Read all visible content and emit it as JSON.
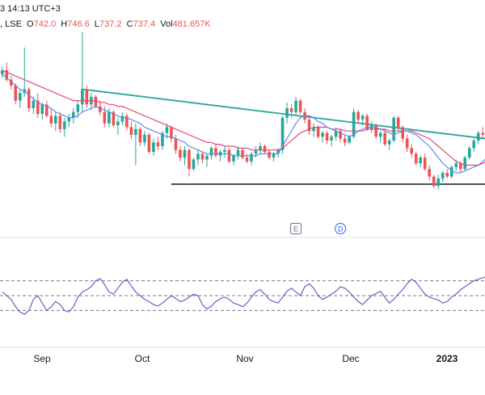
{
  "header": {
    "datetime": "3 14:13 UTC+3",
    "exchange": ", LSE",
    "ohlc": [
      {
        "label": "O",
        "value": "742.0"
      },
      {
        "label": "H",
        "value": "746.6"
      },
      {
        "label": "L",
        "value": "737.2"
      },
      {
        "label": "C",
        "value": "737.4"
      },
      {
        "label": "Vol",
        "value": "481.657K"
      }
    ]
  },
  "colors": {
    "up": "#26a69a",
    "down": "#ef5350",
    "ma_fast": "#5b8def",
    "ma_slow": "#e9457a",
    "trendline": "#26a69a",
    "support": "#131722",
    "osc": "#7e57c2",
    "event_e": "#6b7280",
    "event_d": "#2962ff"
  },
  "chart_data": [
    {
      "type": "candlestick",
      "title": "",
      "x_ticks": [
        "Sep",
        "Oct",
        "Nov",
        "Dec",
        "2023"
      ],
      "ylim": [
        0,
        100
      ],
      "candles": [
        [
          78,
          82,
          76,
          80
        ],
        [
          80,
          84,
          74,
          75
        ],
        [
          75,
          77,
          70,
          72
        ],
        [
          72,
          73,
          62,
          64
        ],
        [
          64,
          70,
          60,
          68
        ],
        [
          68,
          92,
          66,
          70
        ],
        [
          70,
          71,
          58,
          60
        ],
        [
          60,
          66,
          57,
          64
        ],
        [
          64,
          68,
          55,
          57
        ],
        [
          57,
          63,
          54,
          62
        ],
        [
          62,
          64,
          55,
          56
        ],
        [
          56,
          60,
          50,
          52
        ],
        [
          52,
          58,
          48,
          56
        ],
        [
          56,
          58,
          47,
          49
        ],
        [
          49,
          55,
          45,
          53
        ],
        [
          53,
          57,
          50,
          55
        ],
        [
          55,
          60,
          52,
          58
        ],
        [
          58,
          64,
          55,
          62
        ],
        [
          62,
          100,
          58,
          70
        ],
        [
          70,
          72,
          60,
          62
        ],
        [
          62,
          68,
          59,
          66
        ],
        [
          66,
          67,
          60,
          61
        ],
        [
          61,
          64,
          56,
          58
        ],
        [
          58,
          61,
          50,
          52
        ],
        [
          52,
          60,
          50,
          58
        ],
        [
          58,
          59,
          50,
          51
        ],
        [
          51,
          55,
          46,
          53
        ],
        [
          53,
          58,
          51,
          56
        ],
        [
          56,
          57,
          48,
          50
        ],
        [
          50,
          53,
          44,
          46
        ],
        [
          46,
          52,
          30,
          49
        ],
        [
          49,
          50,
          40,
          42
        ],
        [
          42,
          48,
          40,
          46
        ],
        [
          46,
          47,
          36,
          37
        ],
        [
          37,
          44,
          35,
          42
        ],
        [
          42,
          45,
          38,
          40
        ],
        [
          40,
          48,
          38,
          47
        ],
        [
          47,
          52,
          44,
          50
        ],
        [
          50,
          51,
          42,
          44
        ],
        [
          44,
          46,
          36,
          38
        ],
        [
          38,
          40,
          32,
          34
        ],
        [
          34,
          40,
          30,
          38
        ],
        [
          38,
          39,
          24,
          28
        ],
        [
          28,
          34,
          27,
          33
        ],
        [
          33,
          38,
          30,
          36
        ],
        [
          36,
          37,
          31,
          33
        ],
        [
          33,
          36,
          29,
          35
        ],
        [
          35,
          40,
          33,
          39
        ],
        [
          39,
          41,
          34,
          35
        ],
        [
          35,
          38,
          32,
          37
        ],
        [
          37,
          40,
          34,
          38
        ],
        [
          38,
          39,
          31,
          32
        ],
        [
          32,
          36,
          30,
          35
        ],
        [
          35,
          40,
          33,
          38
        ],
        [
          38,
          39,
          33,
          34
        ],
        [
          34,
          36,
          31,
          32
        ],
        [
          32,
          37,
          30,
          36
        ],
        [
          36,
          40,
          34,
          38
        ],
        [
          38,
          42,
          36,
          40
        ],
        [
          40,
          41,
          36,
          37
        ],
        [
          37,
          38,
          33,
          34
        ],
        [
          34,
          37,
          32,
          36
        ],
        [
          36,
          39,
          34,
          38
        ],
        [
          38,
          56,
          36,
          55
        ],
        [
          55,
          63,
          52,
          60
        ],
        [
          60,
          62,
          55,
          58
        ],
        [
          58,
          66,
          56,
          64
        ],
        [
          64,
          65,
          57,
          58
        ],
        [
          58,
          60,
          52,
          54
        ],
        [
          54,
          56,
          46,
          48
        ],
        [
          48,
          52,
          45,
          50
        ],
        [
          50,
          51,
          44,
          45
        ],
        [
          45,
          48,
          42,
          47
        ],
        [
          47,
          48,
          41,
          43
        ],
        [
          43,
          46,
          40,
          45
        ],
        [
          45,
          50,
          43,
          48
        ],
        [
          48,
          49,
          42,
          44
        ],
        [
          44,
          46,
          40,
          42
        ],
        [
          42,
          46,
          41,
          45
        ],
        [
          45,
          60,
          44,
          58
        ],
        [
          58,
          59,
          52,
          54
        ],
        [
          54,
          57,
          51,
          56
        ],
        [
          56,
          57,
          48,
          49
        ],
        [
          49,
          53,
          47,
          51
        ],
        [
          51,
          52,
          44,
          45
        ],
        [
          45,
          48,
          42,
          47
        ],
        [
          47,
          49,
          40,
          41
        ],
        [
          41,
          44,
          38,
          43
        ],
        [
          43,
          56,
          42,
          55
        ],
        [
          55,
          56,
          48,
          50
        ],
        [
          50,
          51,
          42,
          44
        ],
        [
          44,
          46,
          37,
          39
        ],
        [
          39,
          41,
          34,
          36
        ],
        [
          36,
          37,
          30,
          31
        ],
        [
          31,
          35,
          29,
          34
        ],
        [
          34,
          36,
          27,
          28
        ],
        [
          28,
          30,
          22,
          24
        ],
        [
          24,
          25,
          18,
          19
        ],
        [
          19,
          25,
          17,
          23
        ],
        [
          23,
          27,
          21,
          26
        ],
        [
          26,
          28,
          23,
          24
        ],
        [
          24,
          30,
          23,
          29
        ],
        [
          29,
          33,
          27,
          31
        ],
        [
          31,
          32,
          26,
          28
        ],
        [
          28,
          35,
          27,
          34
        ],
        [
          34,
          40,
          33,
          39
        ],
        [
          39,
          44,
          37,
          43
        ],
        [
          43,
          48,
          41,
          47
        ],
        [
          47,
          50,
          44,
          46
        ]
      ],
      "ma_fast": [
        78,
        76,
        74,
        72,
        70,
        69,
        67,
        65,
        63,
        62,
        61,
        60,
        58,
        57,
        56,
        55,
        55,
        56,
        58,
        59,
        60,
        61,
        60,
        59,
        58,
        57,
        56,
        55,
        55,
        54,
        53,
        52,
        50,
        49,
        48,
        47,
        46,
        45,
        45,
        44,
        43,
        42,
        40,
        39,
        38,
        37,
        36,
        36,
        36,
        36,
        36,
        36,
        35,
        35,
        35,
        35,
        35,
        35,
        36,
        36,
        36,
        36,
        36,
        40,
        44,
        48,
        52,
        55,
        56,
        56,
        55,
        53,
        52,
        50,
        49,
        48,
        47,
        46,
        45,
        46,
        48,
        49,
        50,
        50,
        50,
        49,
        48,
        47,
        46,
        47,
        48,
        48,
        47,
        46,
        44,
        42,
        40,
        37,
        34,
        31,
        29,
        27,
        26,
        26,
        27,
        28,
        29,
        30,
        32,
        34,
        37,
        40
      ],
      "ma_slow": [
        80,
        79,
        78,
        77,
        76,
        75,
        74,
        73,
        72,
        71,
        70,
        69,
        68,
        67,
        66,
        65,
        64,
        64,
        64,
        64,
        64,
        64,
        63,
        63,
        62,
        62,
        61,
        61,
        60,
        59,
        58,
        57,
        56,
        55,
        54,
        53,
        52,
        51,
        50,
        49,
        48,
        47,
        46,
        45,
        44,
        43,
        42,
        42,
        41,
        41,
        40,
        40,
        40,
        39,
        39,
        39,
        38,
        38,
        38,
        38,
        38,
        38,
        38,
        39,
        41,
        43,
        45,
        47,
        48,
        49,
        50,
        50,
        50,
        50,
        49,
        49,
        49,
        48,
        48,
        48,
        48,
        48,
        49,
        49,
        49,
        49,
        49,
        48,
        48,
        48,
        48,
        48,
        48,
        47,
        46,
        45,
        44,
        42,
        40,
        38,
        36,
        34,
        32,
        31,
        30,
        30,
        30,
        30,
        31,
        32,
        34,
        36
      ],
      "trendline": {
        "from": {
          "index": 18,
          "value": 70
        },
        "to": {
          "index": 112,
          "value": 43
        }
      },
      "support_level": 20,
      "events": [
        {
          "label": "E",
          "index": 66
        },
        {
          "label": "D",
          "index": 76
        }
      ],
      "oscillator": {
        "levels": [
          70,
          50,
          30
        ],
        "values": [
          55,
          50,
          45,
          35,
          28,
          25,
          30,
          45,
          50,
          40,
          30,
          35,
          42,
          38,
          30,
          28,
          35,
          48,
          55,
          58,
          62,
          70,
          73,
          65,
          55,
          52,
          60,
          68,
          72,
          63,
          55,
          50,
          45,
          42,
          38,
          36,
          40,
          45,
          50,
          46,
          42,
          44,
          48,
          52,
          50,
          38,
          32,
          36,
          42,
          46,
          48,
          45,
          40,
          38,
          35,
          40,
          48,
          55,
          58,
          52,
          45,
          42,
          40,
          48,
          56,
          60,
          55,
          50,
          62,
          66,
          60,
          50,
          45,
          48,
          52,
          56,
          62,
          60,
          55,
          48,
          42,
          38,
          44,
          50,
          53,
          56,
          48,
          40,
          45,
          52,
          58,
          66,
          72,
          68,
          60,
          52,
          48,
          46,
          44,
          40,
          42,
          48,
          52,
          58,
          62,
          66,
          70,
          72,
          74,
          76,
          73,
          75
        ]
      }
    }
  ]
}
